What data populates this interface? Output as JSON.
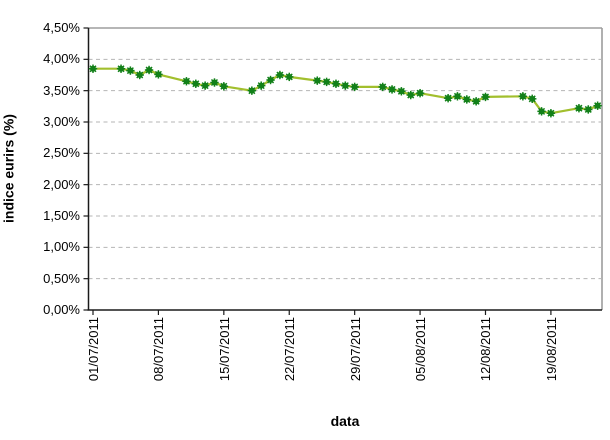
{
  "chart_data": {
    "type": "line",
    "title": "",
    "xlabel": "data",
    "ylabel": "indice eurirs (%)",
    "legend": "none",
    "grid": {
      "horizontal": true,
      "style": "dashed",
      "color": "#b5b5b5"
    },
    "ylim": [
      0,
      4.5
    ],
    "axis_color": "#1a1a1a",
    "border_color": "#9d9d9d",
    "background": "#ffffff",
    "y_ticks": [
      {
        "value": 4.5,
        "label": "4,50%"
      },
      {
        "value": 4.0,
        "label": "4,00%"
      },
      {
        "value": 3.5,
        "label": "3,50%"
      },
      {
        "value": 3.0,
        "label": "3,00%"
      },
      {
        "value": 2.5,
        "label": "2,50%"
      },
      {
        "value": 2.0,
        "label": "2,00%"
      },
      {
        "value": 1.5,
        "label": "1,50%"
      },
      {
        "value": 1.0,
        "label": "1,00%"
      },
      {
        "value": 0.5,
        "label": "0,50%"
      },
      {
        "value": 0.0,
        "label": "0,00%"
      }
    ],
    "x_ticks": [
      {
        "date": "01/07/2011",
        "label": "01/07/2011"
      },
      {
        "date": "08/07/2011",
        "label": "08/07/2011"
      },
      {
        "date": "15/07/2011",
        "label": "15/07/2011"
      },
      {
        "date": "22/07/2011",
        "label": "22/07/2011"
      },
      {
        "date": "29/07/2011",
        "label": "29/07/2011"
      },
      {
        "date": "05/08/2011",
        "label": "05/08/2011"
      },
      {
        "date": "12/08/2011",
        "label": "12/08/2011"
      },
      {
        "date": "19/08/2011",
        "label": "19/08/2011"
      }
    ],
    "series": [
      {
        "name": "indice eurirs",
        "line_color": "#a2bf2d",
        "marker_color": "#128019",
        "marker": "asterisk",
        "points": [
          {
            "date": "01/07/2011",
            "value": 3.85
          },
          {
            "date": "04/07/2011",
            "value": 3.85
          },
          {
            "date": "05/07/2011",
            "value": 3.82
          },
          {
            "date": "06/07/2011",
            "value": 3.75
          },
          {
            "date": "07/07/2011",
            "value": 3.83
          },
          {
            "date": "08/07/2011",
            "value": 3.76
          },
          {
            "date": "11/07/2011",
            "value": 3.65
          },
          {
            "date": "12/07/2011",
            "value": 3.61
          },
          {
            "date": "13/07/2011",
            "value": 3.58
          },
          {
            "date": "14/07/2011",
            "value": 3.63
          },
          {
            "date": "15/07/2011",
            "value": 3.57
          },
          {
            "date": "18/07/2011",
            "value": 3.5
          },
          {
            "date": "19/07/2011",
            "value": 3.58
          },
          {
            "date": "20/07/2011",
            "value": 3.67
          },
          {
            "date": "21/07/2011",
            "value": 3.75
          },
          {
            "date": "22/07/2011",
            "value": 3.72
          },
          {
            "date": "25/07/2011",
            "value": 3.66
          },
          {
            "date": "26/07/2011",
            "value": 3.64
          },
          {
            "date": "27/07/2011",
            "value": 3.61
          },
          {
            "date": "28/07/2011",
            "value": 3.58
          },
          {
            "date": "29/07/2011",
            "value": 3.56
          },
          {
            "date": "01/08/2011",
            "value": 3.56
          },
          {
            "date": "02/08/2011",
            "value": 3.52
          },
          {
            "date": "03/08/2011",
            "value": 3.49
          },
          {
            "date": "04/08/2011",
            "value": 3.43
          },
          {
            "date": "05/08/2011",
            "value": 3.46
          },
          {
            "date": "08/08/2011",
            "value": 3.38
          },
          {
            "date": "09/08/2011",
            "value": 3.41
          },
          {
            "date": "10/08/2011",
            "value": 3.36
          },
          {
            "date": "11/08/2011",
            "value": 3.33
          },
          {
            "date": "12/08/2011",
            "value": 3.4
          },
          {
            "date": "16/08/2011",
            "value": 3.41
          },
          {
            "date": "17/08/2011",
            "value": 3.37
          },
          {
            "date": "18/08/2011",
            "value": 3.17
          },
          {
            "date": "19/08/2011",
            "value": 3.14
          },
          {
            "date": "22/08/2011",
            "value": 3.22
          },
          {
            "date": "23/08/2011",
            "value": 3.2
          },
          {
            "date": "24/08/2011",
            "value": 3.26
          }
        ]
      }
    ]
  }
}
